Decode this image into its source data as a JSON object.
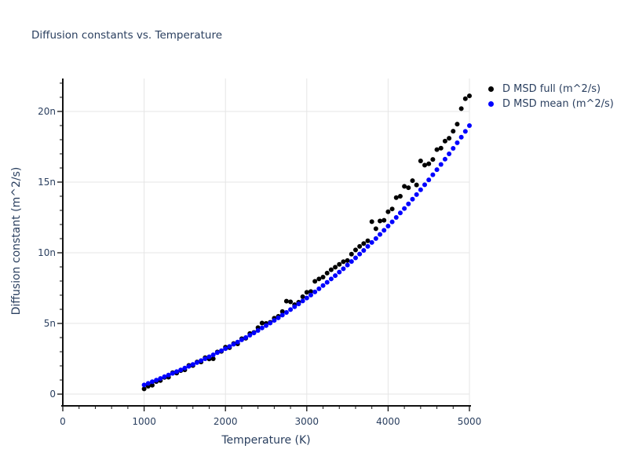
{
  "title": "Diffusion constants vs. Temperature",
  "chart_data": {
    "type": "scatter",
    "title": "Diffusion constants vs. Temperature",
    "xlabel": "Temperature (K)",
    "ylabel": "Diffusion constant (m^2/s)",
    "xlim": [
      0,
      5000
    ],
    "ylim_n": [
      -0.83,
      22.33
    ],
    "grid": true,
    "legend_position": "top-right-outside",
    "unit_note": "y tick suffix n = nano (1e-9 m^2/s)",
    "x_ticks": [
      {
        "value": 0,
        "label": "0"
      },
      {
        "value": 1000,
        "label": "1000"
      },
      {
        "value": 2000,
        "label": "2000"
      },
      {
        "value": 3000,
        "label": "3000"
      },
      {
        "value": 4000,
        "label": "4000"
      },
      {
        "value": 5000,
        "label": "5000"
      }
    ],
    "y_ticks": [
      {
        "value": 0,
        "label": "0"
      },
      {
        "value": 5,
        "label": "5n"
      },
      {
        "value": 10,
        "label": "10n"
      },
      {
        "value": 15,
        "label": "15n"
      },
      {
        "value": 20,
        "label": "20n"
      }
    ],
    "x_minor_step": 200,
    "y_minor_step": 1,
    "x": [
      1000,
      1050,
      1100,
      1150,
      1200,
      1250,
      1300,
      1350,
      1400,
      1450,
      1500,
      1550,
      1600,
      1650,
      1700,
      1750,
      1800,
      1850,
      1900,
      1950,
      2000,
      2050,
      2100,
      2150,
      2200,
      2250,
      2300,
      2350,
      2400,
      2450,
      2500,
      2550,
      2600,
      2650,
      2700,
      2750,
      2800,
      2850,
      2900,
      2950,
      3000,
      3050,
      3100,
      3150,
      3200,
      3250,
      3300,
      3350,
      3400,
      3450,
      3500,
      3550,
      3600,
      3650,
      3700,
      3750,
      3800,
      3850,
      3900,
      3950,
      4000,
      4050,
      4100,
      4150,
      4200,
      4250,
      4300,
      4350,
      4400,
      4450,
      4500,
      4550,
      4600,
      4650,
      4700,
      4750,
      4800,
      4850,
      4900,
      4950,
      5000
    ],
    "series": [
      {
        "name": "D MSD full (m^2/s)",
        "color": "#000000",
        "marker": "circle",
        "values_n": [
          0.37,
          0.56,
          0.63,
          0.89,
          0.96,
          1.18,
          1.2,
          1.52,
          1.49,
          1.66,
          1.72,
          2.03,
          2.02,
          2.27,
          2.27,
          2.58,
          2.49,
          2.5,
          2.98,
          3.02,
          3.32,
          3.29,
          3.58,
          3.56,
          3.92,
          3.95,
          4.29,
          4.36,
          4.7,
          5.03,
          5.0,
          5.08,
          5.37,
          5.5,
          5.84,
          6.58,
          6.53,
          6.33,
          6.5,
          6.89,
          7.2,
          7.26,
          7.98,
          8.15,
          8.28,
          8.56,
          8.8,
          8.98,
          9.18,
          9.37,
          9.45,
          9.9,
          10.2,
          10.45,
          10.65,
          10.85,
          12.2,
          11.7,
          12.25,
          12.3,
          12.9,
          13.1,
          13.9,
          14.0,
          14.7,
          14.6,
          15.1,
          14.8,
          16.5,
          16.2,
          16.3,
          16.6,
          17.3,
          17.4,
          17.9,
          18.1,
          18.6,
          19.1,
          20.2,
          20.9,
          21.1
        ]
      },
      {
        "name": "D MSD mean (m^2/s)",
        "color": "#0000ff",
        "marker": "circle",
        "values_n": [
          0.65,
          0.76,
          0.88,
          0.99,
          1.11,
          1.23,
          1.35,
          1.47,
          1.59,
          1.71,
          1.84,
          1.97,
          2.1,
          2.23,
          2.37,
          2.5,
          2.64,
          2.78,
          2.93,
          3.07,
          3.22,
          3.37,
          3.53,
          3.68,
          3.84,
          4.0,
          4.17,
          4.33,
          4.5,
          4.68,
          4.85,
          5.03,
          5.22,
          5.4,
          5.59,
          5.78,
          5.98,
          6.18,
          6.38,
          6.59,
          6.8,
          7.01,
          7.23,
          7.45,
          7.68,
          7.91,
          8.15,
          8.38,
          8.63,
          8.87,
          9.13,
          9.38,
          9.64,
          9.91,
          10.17,
          10.45,
          10.73,
          11.01,
          11.3,
          11.59,
          11.89,
          12.19,
          12.5,
          12.82,
          13.13,
          13.46,
          13.79,
          14.12,
          14.46,
          14.81,
          15.16,
          15.52,
          15.88,
          16.25,
          16.62,
          17.0,
          17.39,
          17.78,
          18.18,
          18.59,
          19.0
        ]
      }
    ]
  },
  "colors": {
    "text": "#2a3f5f",
    "axis": "#111111",
    "grid": "#e5e5e5",
    "background": "#ffffff",
    "series_full": "#000000",
    "series_mean": "#0000ff"
  }
}
